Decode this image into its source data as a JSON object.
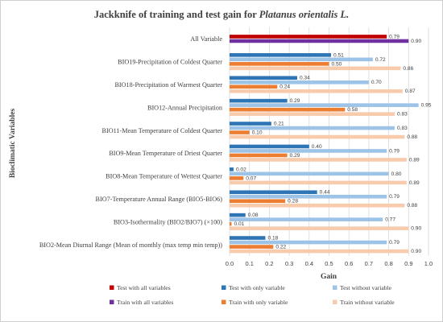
{
  "chart_data": {
    "type": "bar",
    "orientation": "horizontal",
    "title_prefix": "Jackknife of training and test gain for ",
    "title_species": "Platanus orientalis L.",
    "xlabel": "Gain",
    "ylabel": "Bioclimatic Variables",
    "xlim": [
      0,
      1.0
    ],
    "xticks": [
      "0.0",
      "0.1",
      "0.2",
      "0.3",
      "0.4",
      "0.5",
      "0.6",
      "0.7",
      "0.8",
      "0.9",
      "1.0"
    ],
    "grid": "vertical",
    "legend_position": "bottom",
    "categories": [
      "All Variable",
      "BIO19-Precipitation of Coldest Quarter",
      "BIO18-Precipitation of Warmest Quarter",
      "BIO12-Annual Precipitation",
      "BIO11-Mean Temperature of Coldest Quarter",
      "BIO9-Mean Temperature of Driest Quarter",
      "BIO8-Mean Temperature of Wettest Quarter",
      "BIO7-Temperature Annual Range (BIO5-BIO6)",
      "BIO3-Isothermality (BIO2/BIO7) (×100)",
      "BIO2-Mean Diurnal Range (Mean of monthly (max temp min temp))"
    ],
    "series": [
      {
        "name": "Test with all variables",
        "color": "#c00000",
        "values": [
          0.79,
          null,
          null,
          null,
          null,
          null,
          null,
          null,
          null,
          null
        ]
      },
      {
        "name": "Train with all variables",
        "color": "#7030a0",
        "values": [
          0.9,
          null,
          null,
          null,
          null,
          null,
          null,
          null,
          null,
          null
        ]
      },
      {
        "name": "Test with only variable",
        "color": "#2e75b6",
        "values": [
          null,
          0.51,
          0.34,
          0.29,
          0.21,
          0.4,
          0.02,
          0.44,
          0.08,
          0.18
        ]
      },
      {
        "name": "Test without variable",
        "color": "#9dc3e6",
        "values": [
          null,
          0.72,
          0.7,
          0.95,
          0.83,
          0.79,
          0.8,
          0.79,
          0.77,
          0.79
        ]
      },
      {
        "name": "Train with only variable",
        "color": "#ed7d31",
        "values": [
          null,
          0.5,
          0.24,
          0.58,
          0.1,
          0.29,
          0.07,
          0.28,
          0.01,
          0.22
        ]
      },
      {
        "name": "Train without variable",
        "color": "#f8cbad",
        "values": [
          null,
          0.86,
          0.87,
          0.83,
          0.88,
          0.89,
          0.89,
          0.88,
          0.9,
          0.9
        ]
      }
    ],
    "legend_rows": [
      [
        "Test with all variables",
        "Test with only variable",
        "Test without variable"
      ],
      [
        "Train with all variables",
        "Train with only variable",
        "Train without variable"
      ]
    ]
  }
}
